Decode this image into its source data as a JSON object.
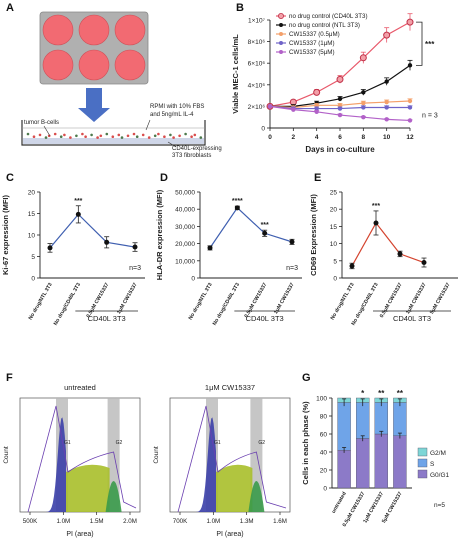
{
  "panel_labels": [
    "A",
    "B",
    "C",
    "D",
    "E",
    "F",
    "G"
  ],
  "panel_a": {
    "annotation_media": [
      "RPMI with 10% FBS",
      "and 5ng/mL IL-4"
    ],
    "annotation_cells": "tumor B-cells",
    "annotation_feeder": [
      "CD40L-expressing",
      "3T3 fibroblasts"
    ],
    "colors": {
      "plate": "#b0b0b0",
      "well": "#f26a72",
      "arrow": "#4a6fc4",
      "cells": "#d94d4d"
    }
  },
  "chart_data": [
    {
      "panel": "B",
      "type": "line",
      "xlabel": "Days in co-culture",
      "ylabel": "Viable MEC-1 cells/mL",
      "x": [
        0,
        2,
        4,
        6,
        8,
        10,
        12
      ],
      "xticks": [
        "0",
        "2",
        "4",
        "6",
        "8",
        "10",
        "12"
      ],
      "yticks": [
        "0",
        "2×10⁶",
        "4×10⁶",
        "6×10⁶",
        "8×10⁶",
        "1×10⁷"
      ],
      "ylim": [
        0,
        10000000
      ],
      "series": [
        {
          "name": "no drug control (CD40L 3T3)",
          "color": "#e8586a",
          "values": [
            2000000,
            2400000,
            3300000,
            4500000,
            6500000,
            8600000,
            9800000
          ]
        },
        {
          "name": "no drug control (NTL 3T3)",
          "color": "#111111",
          "values": [
            2000000,
            2000000,
            2300000,
            2700000,
            3300000,
            4300000,
            5800000
          ]
        },
        {
          "name": "CW15337 (0.5μM)",
          "color": "#f4a06a",
          "values": [
            2000000,
            1900000,
            2100000,
            2100000,
            2300000,
            2400000,
            2500000
          ]
        },
        {
          "name": "CW15337 (1μM)",
          "color": "#6f63c8",
          "values": [
            2000000,
            1800000,
            1800000,
            1800000,
            1900000,
            1900000,
            1900000
          ]
        },
        {
          "name": "CW15337 (5μM)",
          "color": "#b261c8",
          "values": [
            2000000,
            1700000,
            1500000,
            1200000,
            1000000,
            800000,
            700000
          ]
        }
      ],
      "annotation_n": "n = 3",
      "significance": "***"
    },
    {
      "panel": "C",
      "type": "line",
      "ylabel": "Ki-67 expression (MFI)",
      "yticks": [
        "0",
        "5",
        "10",
        "15",
        "20"
      ],
      "ylim": [
        0,
        20
      ],
      "categories": [
        "No drug/NTL 3T3",
        "No drug/CD40L 3T3",
        "0.5μM CW15337",
        "1μM CW15337"
      ],
      "values": [
        7,
        14.8,
        8.3,
        7.2
      ],
      "errors": [
        1.0,
        2.0,
        1.3,
        1.0
      ],
      "color": "#3f5fb0",
      "significance": [
        "",
        "***",
        "",
        ""
      ],
      "annotation_n": "n=3",
      "group_label": "CD40L 3T3"
    },
    {
      "panel": "D",
      "type": "line",
      "ylabel": "HLA-DR expression (MFI)",
      "yticks": [
        "0",
        "10,000",
        "20,000",
        "30,000",
        "40,000",
        "50,000"
      ],
      "ylim": [
        0,
        50000
      ],
      "categories": [
        "No drug/NTL 3T3",
        "No drug/CD40L 3T3",
        "0.5μM CW15337",
        "1μM CW15337"
      ],
      "values": [
        17500,
        40800,
        26000,
        21000
      ],
      "errors": [
        1200,
        1000,
        1800,
        1500
      ],
      "color": "#3f5fb0",
      "significance": [
        "",
        "****",
        "***",
        ""
      ],
      "annotation_n": "n=3",
      "group_label": "CD40L 3T3"
    },
    {
      "panel": "E",
      "type": "line",
      "ylabel": "CD69 Expression (MFI)",
      "yticks": [
        "0",
        "5",
        "10",
        "15",
        "20",
        "25"
      ],
      "ylim": [
        0,
        25
      ],
      "categories": [
        "No drug/NTL 3T3",
        "No drug/CD40L 3T3",
        "0.5μM CW15337",
        "1μM CW15337",
        "5μM CW15337"
      ],
      "values": [
        3.5,
        16,
        7,
        4.5,
        0
      ],
      "errors": [
        0.8,
        3.5,
        0.8,
        1.3,
        0
      ],
      "color": "#d4442f",
      "significance": [
        "",
        "***",
        "",
        "",
        ""
      ],
      "group_label": "CD40L 3T3"
    },
    {
      "panel": "F1",
      "type": "area",
      "title": "untreated",
      "xlabel": "PI (area)",
      "ylabel": "Count",
      "xticks": [
        "500K",
        "1.0M",
        "1.5M",
        "2.0M"
      ],
      "gates": [
        "G1",
        "G2"
      ]
    },
    {
      "panel": "F2",
      "type": "area",
      "title": "1μM CW15337",
      "xlabel": "PI (area)",
      "ylabel": "Count",
      "xticks": [
        "700K",
        "1.0M",
        "1.3M",
        "1.6M"
      ],
      "gates": [
        "G1",
        "G2"
      ]
    },
    {
      "panel": "G",
      "type": "bar",
      "ylabel": "Cells in each phase (%)",
      "yticks": [
        "0",
        "20",
        "40",
        "60",
        "80",
        "100"
      ],
      "ylim": [
        0,
        100
      ],
      "categories": [
        "untreated",
        "0.5μM CW15337",
        "1μM CW15337",
        "5μM CW15337"
      ],
      "series": [
        {
          "name": "G0/G1",
          "color": "#8c7ac8",
          "values": [
            42,
            55,
            60,
            58
          ]
        },
        {
          "name": "S",
          "color": "#6fa4e8",
          "values": [
            53,
            40,
            35,
            37
          ]
        },
        {
          "name": "G2/M",
          "color": "#7ed6d6",
          "values": [
            5,
            5,
            5,
            5
          ]
        }
      ],
      "significance": [
        "",
        "*",
        "**",
        "**"
      ],
      "annotation_n": "n=5"
    }
  ]
}
